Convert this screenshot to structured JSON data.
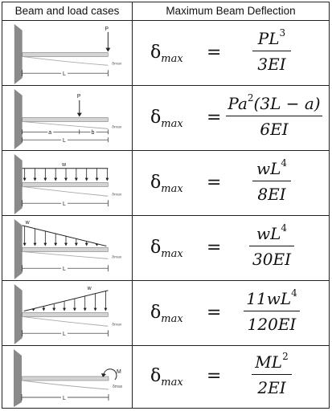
{
  "header": {
    "col1": "Beam and load cases",
    "col2": "Maximum Beam Deflection"
  },
  "symbols": {
    "delta": "δ",
    "delta_sub": "max",
    "equals": "=",
    "L": "L",
    "a": "a",
    "b": "b"
  },
  "rows": [
    {
      "load_label": "P",
      "num": "PL",
      "num_exp": "3",
      "den": "3EI"
    },
    {
      "load_label": "P",
      "num": "Pa",
      "num_exp": "2",
      "num_rest": "(3L − a)",
      "den": "6EI"
    },
    {
      "load_label": "w",
      "num": "wL",
      "num_exp": "4",
      "den": "8EI"
    },
    {
      "load_label": "w",
      "num": "wL",
      "num_exp": "4",
      "den": "30EI"
    },
    {
      "load_label": "w",
      "num": "11wL",
      "num_exp": "4",
      "den": "120EI"
    },
    {
      "load_label": "M",
      "num": "ML",
      "num_exp": "2",
      "den": "2EI"
    }
  ],
  "colors": {
    "wall": "#8a8a8a",
    "beam": "#cfcfcf",
    "line": "#222222"
  }
}
